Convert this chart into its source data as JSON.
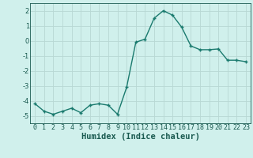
{
  "xlabel": "Humidex (Indice chaleur)",
  "ylabel": "",
  "x": [
    0,
    1,
    2,
    3,
    4,
    5,
    6,
    7,
    8,
    9,
    10,
    11,
    12,
    13,
    14,
    15,
    16,
    17,
    18,
    19,
    20,
    21,
    22,
    23
  ],
  "y": [
    -4.2,
    -4.7,
    -4.9,
    -4.7,
    -4.5,
    -4.8,
    -4.3,
    -4.2,
    -4.3,
    -4.9,
    -3.1,
    -0.1,
    0.1,
    1.5,
    2.0,
    1.7,
    0.9,
    -0.35,
    -0.6,
    -0.6,
    -0.55,
    -1.3,
    -1.3,
    -1.4
  ],
  "line_color": "#1a7a6e",
  "bg_color": "#d0f0ec",
  "grid_color": "#b8d8d4",
  "tick_label_color": "#1a5a50",
  "ylim": [
    -5.5,
    2.5
  ],
  "yticks": [
    -5,
    -4,
    -3,
    -2,
    -1,
    0,
    1,
    2
  ],
  "xticks": [
    0,
    1,
    2,
    3,
    4,
    5,
    6,
    7,
    8,
    9,
    10,
    11,
    12,
    13,
    14,
    15,
    16,
    17,
    18,
    19,
    20,
    21,
    22,
    23
  ],
  "marker": "+",
  "marker_size": 3.5,
  "line_width": 1.0,
  "xlabel_fontsize": 7.5,
  "tick_fontsize": 6.0
}
